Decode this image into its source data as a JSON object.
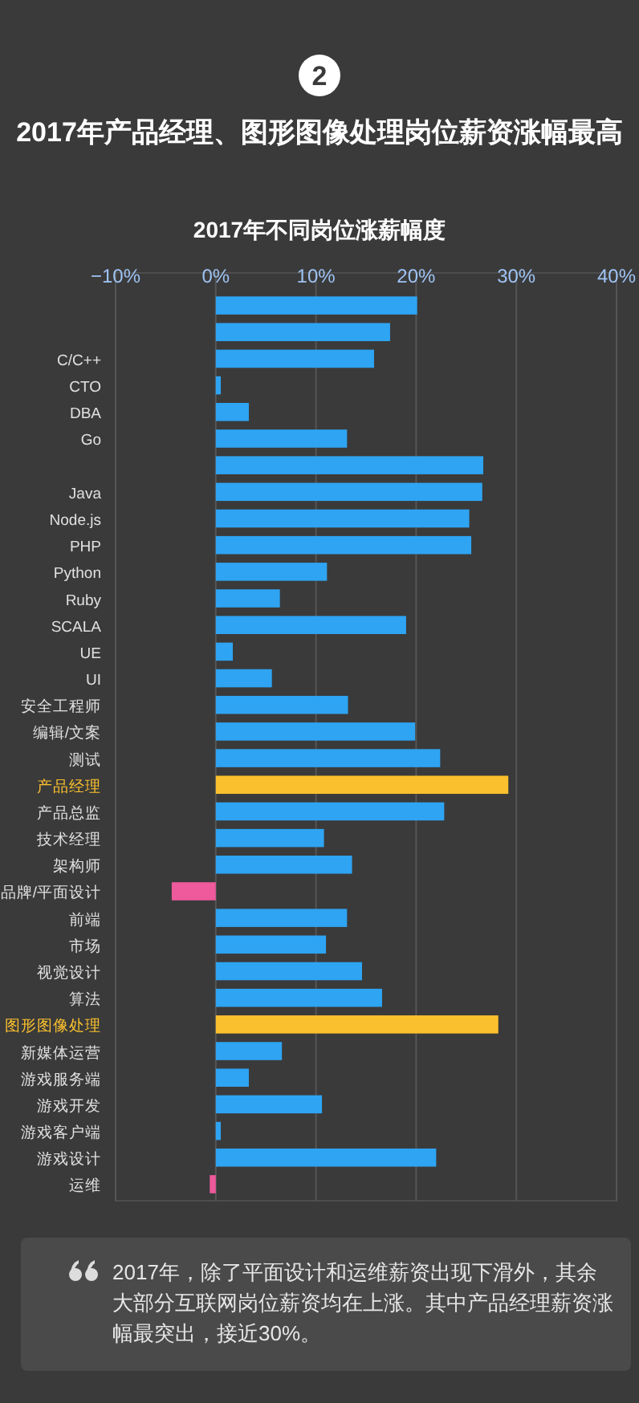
{
  "chart_data": {
    "type": "bar",
    "orientation": "horizontal",
    "title": "2017年产品经理、图形图像处理岗位薪资涨幅最高",
    "subtitle": "2017年不同岗位涨薪幅度",
    "categories": [
      null,
      null,
      "C/C++",
      "CTO",
      "DBA",
      "Go",
      null,
      "Java",
      "Node.js",
      "PHP",
      "Python",
      "Ruby",
      "SCALA",
      "UE",
      "UI",
      "安全工程师",
      "编辑/文案",
      "测试",
      "产品经理",
      "产品总监",
      "技术经理",
      "架构师",
      "品牌/平面设计",
      "前端",
      "市场",
      "视觉设计",
      "算法",
      "图形图像处理",
      "新媒体运营",
      "游戏服务端",
      "游戏开发",
      "游戏客户端",
      "游戏设计",
      "运维"
    ],
    "values": [
      20.1,
      17.4,
      15.8,
      0.5,
      3.3,
      13.1,
      26.7,
      26.6,
      25.3,
      25.5,
      11.1,
      6.4,
      19.0,
      1.7,
      5.6,
      13.2,
      19.9,
      22.4,
      29.2,
      22.8,
      10.8,
      13.6,
      -4.4,
      13.1,
      11.0,
      14.6,
      16.6,
      28.2,
      6.6,
      3.3,
      10.6,
      0.5,
      22.0,
      -0.6
    ],
    "colors": [
      "#2ea4f3",
      "#2ea4f3",
      "#2ea4f3",
      "#2ea4f3",
      "#2ea4f3",
      "#2ea4f3",
      "#2ea4f3",
      "#2ea4f3",
      "#2ea4f3",
      "#2ea4f3",
      "#2ea4f3",
      "#2ea4f3",
      "#2ea4f3",
      "#2ea4f3",
      "#2ea4f3",
      "#2ea4f3",
      "#2ea4f3",
      "#2ea4f3",
      "#fbc02d",
      "#2ea4f3",
      "#2ea4f3",
      "#2ea4f3",
      "#ee5a9c",
      "#2ea4f3",
      "#2ea4f3",
      "#2ea4f3",
      "#2ea4f3",
      "#fbc02d",
      "#2ea4f3",
      "#2ea4f3",
      "#2ea4f3",
      "#2ea4f3",
      "#2ea4f3",
      "#ee5a9c"
    ],
    "xlim": [
      -10,
      40
    ],
    "xticks": [
      {
        "value": -10,
        "label": "−10%"
      },
      {
        "value": 0,
        "label": "0%"
      },
      {
        "value": 10,
        "label": "10%"
      },
      {
        "value": 20,
        "label": "20%"
      },
      {
        "value": 30,
        "label": "30%"
      },
      {
        "value": 40,
        "label": "40%"
      }
    ],
    "grid": "x",
    "annotations": [
      "2",
      "2017年，除了平面设计和运维薪资出现下滑外，其余大部分互联网岗位薪资均在上涨。其中产品经理薪资涨幅最突出，接近30%。"
    ]
  }
}
